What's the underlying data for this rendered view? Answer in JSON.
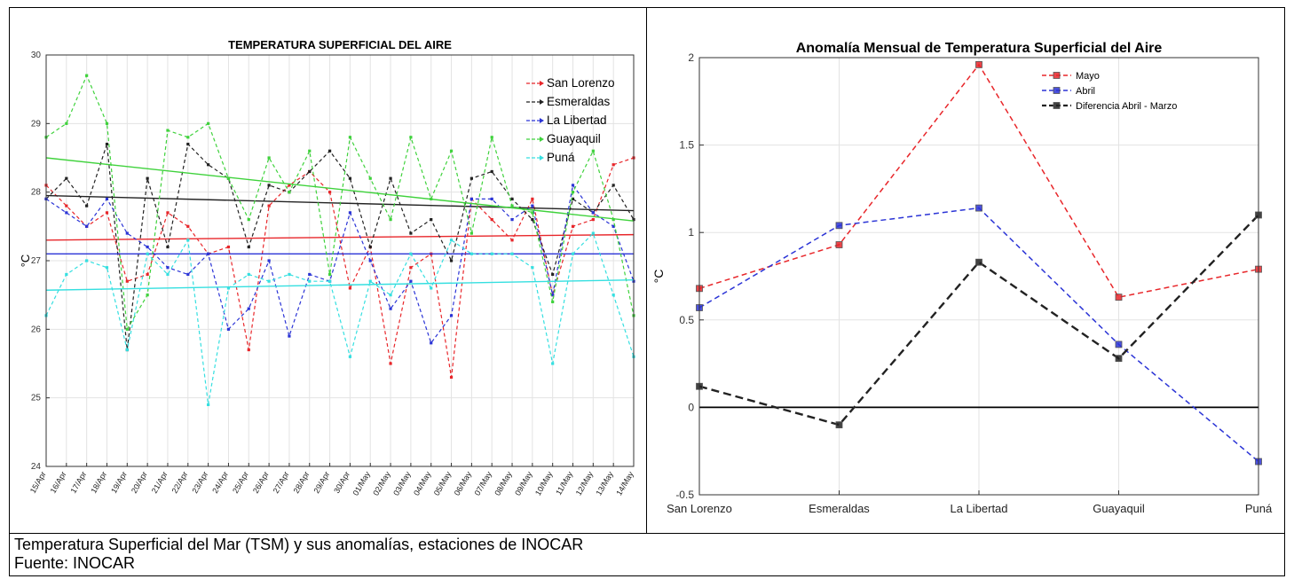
{
  "caption": {
    "line1": "Temperatura Superficial del Mar (TSM) y sus anomalías, estaciones de INOCAR",
    "line2": "Fuente: INOCAR"
  },
  "chart_data": [
    {
      "type": "line",
      "title": "TEMPERATURA SUPERFICIAL DEL AIRE",
      "ylabel": "°C",
      "xlabel": "",
      "ylim": [
        24,
        30
      ],
      "yticks": [
        24,
        25,
        26,
        27,
        28,
        29,
        30
      ],
      "grid": true,
      "legend_position": "top-right",
      "categories": [
        "15/Apr",
        "16/Apr",
        "17/Apr",
        "18/Apr",
        "19/Apr",
        "20/Apr",
        "21/Apr",
        "22/Apr",
        "23/Apr",
        "24/Apr",
        "25/Apr",
        "26/Apr",
        "27/Apr",
        "28/Apr",
        "29/Apr",
        "30/Apr",
        "01/May",
        "02/May",
        "03/May",
        "04/May",
        "05/May",
        "06/May",
        "07/May",
        "08/May",
        "09/May",
        "10/May",
        "11/May",
        "12/May",
        "13/May",
        "14/May"
      ],
      "series": [
        {
          "name": "San Lorenzo",
          "color": "#e8262a",
          "values": [
            28.1,
            27.8,
            27.5,
            27.7,
            26.7,
            26.8,
            27.7,
            27.5,
            27.1,
            27.2,
            25.7,
            27.8,
            28.1,
            28.3,
            28.0,
            26.6,
            27.2,
            25.5,
            26.9,
            27.1,
            25.3,
            27.9,
            27.6,
            27.3,
            27.9,
            26.5,
            27.5,
            27.6,
            28.4,
            28.5
          ],
          "trend": [
            27.3,
            27.38
          ]
        },
        {
          "name": "Esmeraldas",
          "color": "#222222",
          "values": [
            27.9,
            28.2,
            27.8,
            28.7,
            25.7,
            28.2,
            27.2,
            28.7,
            28.4,
            28.2,
            27.2,
            28.1,
            28.0,
            28.3,
            28.6,
            28.2,
            27.2,
            28.2,
            27.4,
            27.6,
            27.0,
            28.2,
            28.3,
            27.9,
            27.6,
            26.8,
            27.9,
            27.7,
            28.1,
            27.6
          ],
          "trend": [
            27.95,
            27.73
          ]
        },
        {
          "name": "La Libertad",
          "color": "#2b34d6",
          "values": [
            27.9,
            27.7,
            27.5,
            27.9,
            27.4,
            27.2,
            26.9,
            26.8,
            27.1,
            26.0,
            26.3,
            27.0,
            25.9,
            26.8,
            26.7,
            27.7,
            27.0,
            26.3,
            26.7,
            25.8,
            26.2,
            27.9,
            27.9,
            27.6,
            27.8,
            26.5,
            28.1,
            27.7,
            27.5,
            26.7
          ],
          "trend": [
            27.1,
            27.1
          ]
        },
        {
          "name": "Guayaquil",
          "color": "#3fd23c",
          "values": [
            28.8,
            29.0,
            29.7,
            29.0,
            26.0,
            26.5,
            28.9,
            28.8,
            29.0,
            28.2,
            27.6,
            28.5,
            28.0,
            28.6,
            26.8,
            28.8,
            28.2,
            27.6,
            28.8,
            27.9,
            28.6,
            27.4,
            28.8,
            27.8,
            27.7,
            26.4,
            28.0,
            28.6,
            27.6,
            26.2
          ],
          "trend": [
            28.5,
            27.58
          ]
        },
        {
          "name": "Puná",
          "color": "#35dfe0",
          "values": [
            26.2,
            26.8,
            27.0,
            26.9,
            25.7,
            27.1,
            26.8,
            27.3,
            24.9,
            26.6,
            26.8,
            26.7,
            26.8,
            26.7,
            26.7,
            25.6,
            26.7,
            26.5,
            27.1,
            26.6,
            27.3,
            27.1,
            27.1,
            27.1,
            26.9,
            25.5,
            27.1,
            27.4,
            26.5,
            25.6
          ],
          "trend": [
            26.57,
            26.72
          ]
        }
      ]
    },
    {
      "type": "line",
      "title": "Anomalía Mensual de Temperatura Superficial del Aire",
      "ylabel": "°C",
      "xlabel": "",
      "ylim": [
        -0.5,
        2
      ],
      "yticks": [
        -0.5,
        0,
        0.5,
        1,
        1.5,
        2
      ],
      "yticklabels": [
        "-0.5",
        "0",
        "0.5",
        "1",
        "1.5",
        "2"
      ],
      "grid": true,
      "legend_position": "top-center",
      "categories": [
        "San Lorenzo",
        "Esmeraldas",
        "La Libertad",
        "Guayaquil",
        "Puná"
      ],
      "series": [
        {
          "name": "Mayo",
          "color": "#e8262a",
          "values": [
            0.68,
            0.93,
            1.96,
            0.63,
            0.79
          ]
        },
        {
          "name": "Abril",
          "color": "#2b34d6",
          "values": [
            0.57,
            1.04,
            1.14,
            0.36,
            -0.31
          ]
        },
        {
          "name": "Diferencia Abril - Marzo",
          "color": "#222222",
          "values": [
            0.12,
            -0.1,
            0.83,
            0.28,
            1.1
          ]
        }
      ],
      "reference_line": 0
    }
  ]
}
